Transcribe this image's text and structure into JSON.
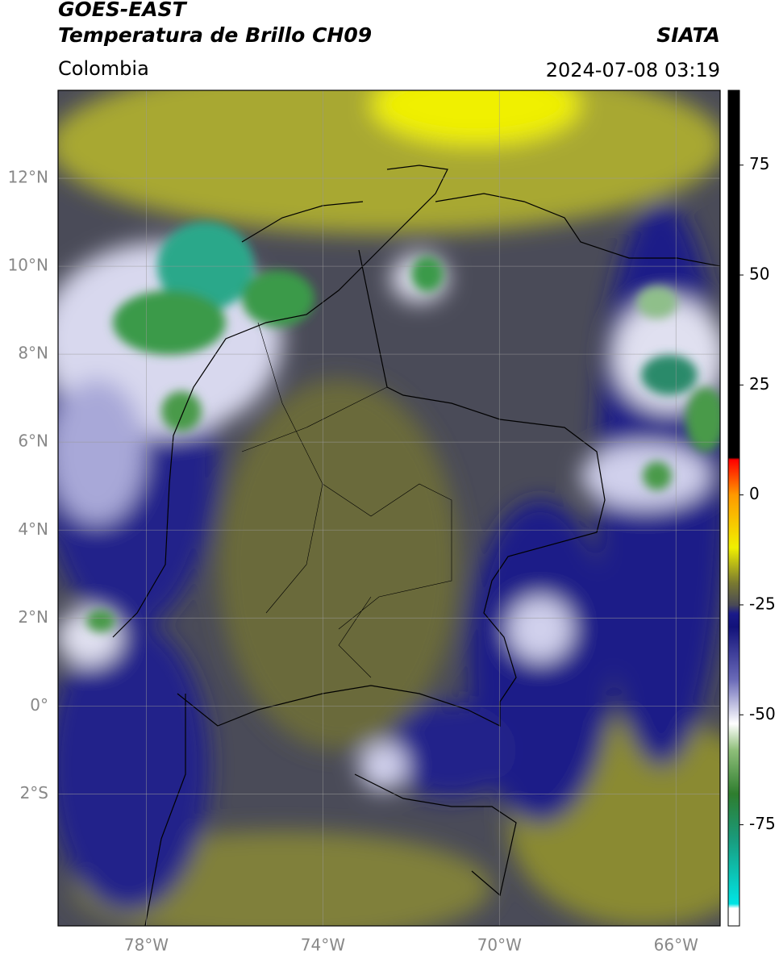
{
  "header": {
    "title": "GOES-EAST",
    "subtitle": "Temperatura de Brillo CH09",
    "source": "SIATA",
    "region": "Colombia",
    "datetime": "2024-07-08 03:19"
  },
  "map": {
    "xlim": [
      -80,
      -65
    ],
    "ylim": [
      -5,
      14
    ],
    "xticks": [
      {
        "value": -78,
        "label": "78°W"
      },
      {
        "value": -74,
        "label": "74°W"
      },
      {
        "value": -70,
        "label": "70°W"
      },
      {
        "value": -66,
        "label": "66°W"
      }
    ],
    "yticks": [
      {
        "value": 12,
        "label": "12°N"
      },
      {
        "value": 10,
        "label": "10°N"
      },
      {
        "value": 8,
        "label": "8°N"
      },
      {
        "value": 6,
        "label": "6°N"
      },
      {
        "value": 4,
        "label": "4°N"
      },
      {
        "value": 2,
        "label": "2°N"
      },
      {
        "value": 0,
        "label": "0°"
      },
      {
        "value": -2,
        "label": "2°S"
      }
    ],
    "grid": true
  },
  "colorbar": {
    "lim": [
      -98,
      92
    ],
    "ticks": [
      75,
      50,
      25,
      0,
      -25,
      -50,
      -75
    ],
    "stops": [
      {
        "value": -98,
        "color": "#ffffff"
      },
      {
        "value": -94,
        "color": "#ffffff"
      },
      {
        "value": -93,
        "color": "#00e5e5"
      },
      {
        "value": -78,
        "color": "#1a9a7a"
      },
      {
        "value": -68,
        "color": "#2e7d2e"
      },
      {
        "value": -58,
        "color": "#8fbf7a"
      },
      {
        "value": -52,
        "color": "#ffffff"
      },
      {
        "value": -42,
        "color": "#6a6ab8"
      },
      {
        "value": -30,
        "color": "#12127a"
      },
      {
        "value": -27,
        "color": "#1a1a8a"
      },
      {
        "value": -25,
        "color": "#4a4a55"
      },
      {
        "value": -20,
        "color": "#7a7a30"
      },
      {
        "value": -12,
        "color": "#f0f000"
      },
      {
        "value": 0,
        "color": "#ff9900"
      },
      {
        "value": 8,
        "color": "#ff0000"
      },
      {
        "value": 8.5,
        "color": "#000000"
      },
      {
        "value": 92,
        "color": "#000000"
      }
    ]
  }
}
